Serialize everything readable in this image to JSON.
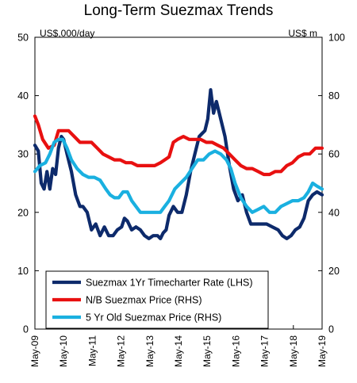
{
  "chart_data": {
    "type": "line",
    "title": "Long-Term Suezmax Trends",
    "left_unit": "US$,000/day",
    "right_unit": "US$ m",
    "ylim_left": [
      0,
      50
    ],
    "ylim_right": [
      0,
      100
    ],
    "y_ticks_left": [
      "0",
      "10",
      "20",
      "30",
      "40",
      "50"
    ],
    "y_ticks_right": [
      "0",
      "20",
      "40",
      "60",
      "80",
      "100"
    ],
    "x_ticks": [
      "May-09",
      "May-10",
      "May-11",
      "May-12",
      "May-13",
      "May-14",
      "May-15",
      "May-16",
      "May-17",
      "May-18",
      "May-19"
    ],
    "x_range": [
      2009.33,
      2019.33
    ],
    "grid": false,
    "legend_position": "bottom-left",
    "series": [
      {
        "name": "Suezmax 1Yr Timecharter Rate (LHS)",
        "axis": "left",
        "color": "#0d2a6b",
        "x": [
          2009.33,
          2009.45,
          2009.55,
          2009.65,
          2009.75,
          2009.85,
          2009.95,
          2010.05,
          2010.15,
          2010.25,
          2010.33,
          2010.45,
          2010.6,
          2010.75,
          2010.9,
          2011.0,
          2011.15,
          2011.3,
          2011.45,
          2011.6,
          2011.75,
          2011.9,
          2012.05,
          2012.2,
          2012.35,
          2012.45,
          2012.55,
          2012.7,
          2012.85,
          2013.0,
          2013.15,
          2013.3,
          2013.45,
          2013.6,
          2013.7,
          2013.8,
          2013.9,
          2014.0,
          2014.15,
          2014.3,
          2014.45,
          2014.6,
          2014.75,
          2014.9,
          2015.05,
          2015.15,
          2015.25,
          2015.35,
          2015.45,
          2015.55,
          2015.65,
          2015.8,
          2015.95,
          2016.1,
          2016.25,
          2016.4,
          2016.55,
          2016.7,
          2016.85,
          2017.0,
          2017.2,
          2017.4,
          2017.6,
          2017.8,
          2017.95,
          2018.1,
          2018.25,
          2018.4,
          2018.55,
          2018.7,
          2018.85,
          2019.0,
          2019.15,
          2019.33
        ],
        "values": [
          31.5,
          30.5,
          25,
          24,
          27,
          24,
          27.5,
          26.5,
          31,
          33,
          32.5,
          30,
          27,
          23,
          21,
          21,
          20,
          17,
          18,
          16,
          17.5,
          16,
          16,
          17,
          17.5,
          19,
          18.5,
          17,
          17.5,
          17,
          16,
          15.5,
          16,
          16,
          15.5,
          16.5,
          17,
          19.5,
          21,
          20,
          20,
          23,
          27,
          30,
          33,
          33.5,
          34,
          36,
          41,
          37,
          39,
          36,
          33,
          28,
          24,
          22,
          23,
          20,
          18,
          18,
          18,
          18,
          17.5,
          17,
          16,
          15.5,
          16,
          17,
          17.5,
          19,
          22,
          23,
          23.5,
          23
        ]
      },
      {
        "name": "N/B Suezmax Price (RHS)",
        "axis": "right",
        "color": "#e81010",
        "x": [
          2009.33,
          2009.45,
          2009.6,
          2009.8,
          2010.0,
          2010.15,
          2010.3,
          2010.5,
          2010.7,
          2010.9,
          2011.1,
          2011.3,
          2011.5,
          2011.7,
          2011.9,
          2012.1,
          2012.3,
          2012.5,
          2012.7,
          2012.9,
          2013.1,
          2013.3,
          2013.5,
          2013.7,
          2013.85,
          2014.0,
          2014.15,
          2014.3,
          2014.5,
          2014.7,
          2014.9,
          2015.1,
          2015.3,
          2015.5,
          2015.7,
          2015.9,
          2016.1,
          2016.3,
          2016.5,
          2016.7,
          2016.9,
          2017.1,
          2017.3,
          2017.5,
          2017.7,
          2017.9,
          2018.1,
          2018.3,
          2018.5,
          2018.7,
          2018.9,
          2019.1,
          2019.33
        ],
        "values": [
          73,
          70,
          65,
          62,
          63,
          68,
          68,
          68,
          66,
          64,
          64,
          64,
          62,
          60,
          59,
          58,
          58,
          57,
          57,
          56,
          56,
          56,
          56,
          57,
          58,
          59,
          64,
          65,
          66,
          65,
          65,
          65,
          64,
          64,
          63,
          62,
          60,
          58,
          56,
          55,
          55,
          54,
          53,
          53,
          54,
          54,
          56,
          57,
          59,
          60,
          60,
          62,
          62
        ]
      },
      {
        "name": "5 Yr Old Suezmax Price (RHS)",
        "axis": "right",
        "color": "#1ab0e0",
        "x": [
          2009.33,
          2009.5,
          2009.7,
          2009.85,
          2010.0,
          2010.15,
          2010.3,
          2010.45,
          2010.6,
          2010.8,
          2011.0,
          2011.2,
          2011.4,
          2011.6,
          2011.8,
          2011.95,
          2012.1,
          2012.25,
          2012.4,
          2012.55,
          2012.7,
          2012.85,
          2013.0,
          2013.2,
          2013.4,
          2013.55,
          2013.7,
          2013.85,
          2014.0,
          2014.2,
          2014.4,
          2014.6,
          2014.8,
          2015.0,
          2015.2,
          2015.4,
          2015.6,
          2015.8,
          2016.0,
          2016.15,
          2016.3,
          2016.5,
          2016.7,
          2016.9,
          2017.1,
          2017.3,
          2017.5,
          2017.7,
          2017.9,
          2018.1,
          2018.3,
          2018.5,
          2018.7,
          2018.85,
          2019.0,
          2019.15,
          2019.33
        ],
        "values": [
          54,
          56,
          57,
          60,
          64,
          65,
          65,
          62,
          58,
          55,
          53,
          52,
          52,
          51,
          48,
          46,
          45,
          45,
          47,
          47,
          44,
          42,
          40,
          40,
          40,
          40,
          40,
          42,
          44,
          48,
          50,
          52,
          55,
          58,
          58,
          60,
          61,
          60,
          58,
          55,
          50,
          45,
          42,
          40,
          41,
          42,
          40,
          40,
          42,
          43,
          44,
          44,
          45,
          47,
          50,
          49,
          48
        ]
      }
    ]
  }
}
